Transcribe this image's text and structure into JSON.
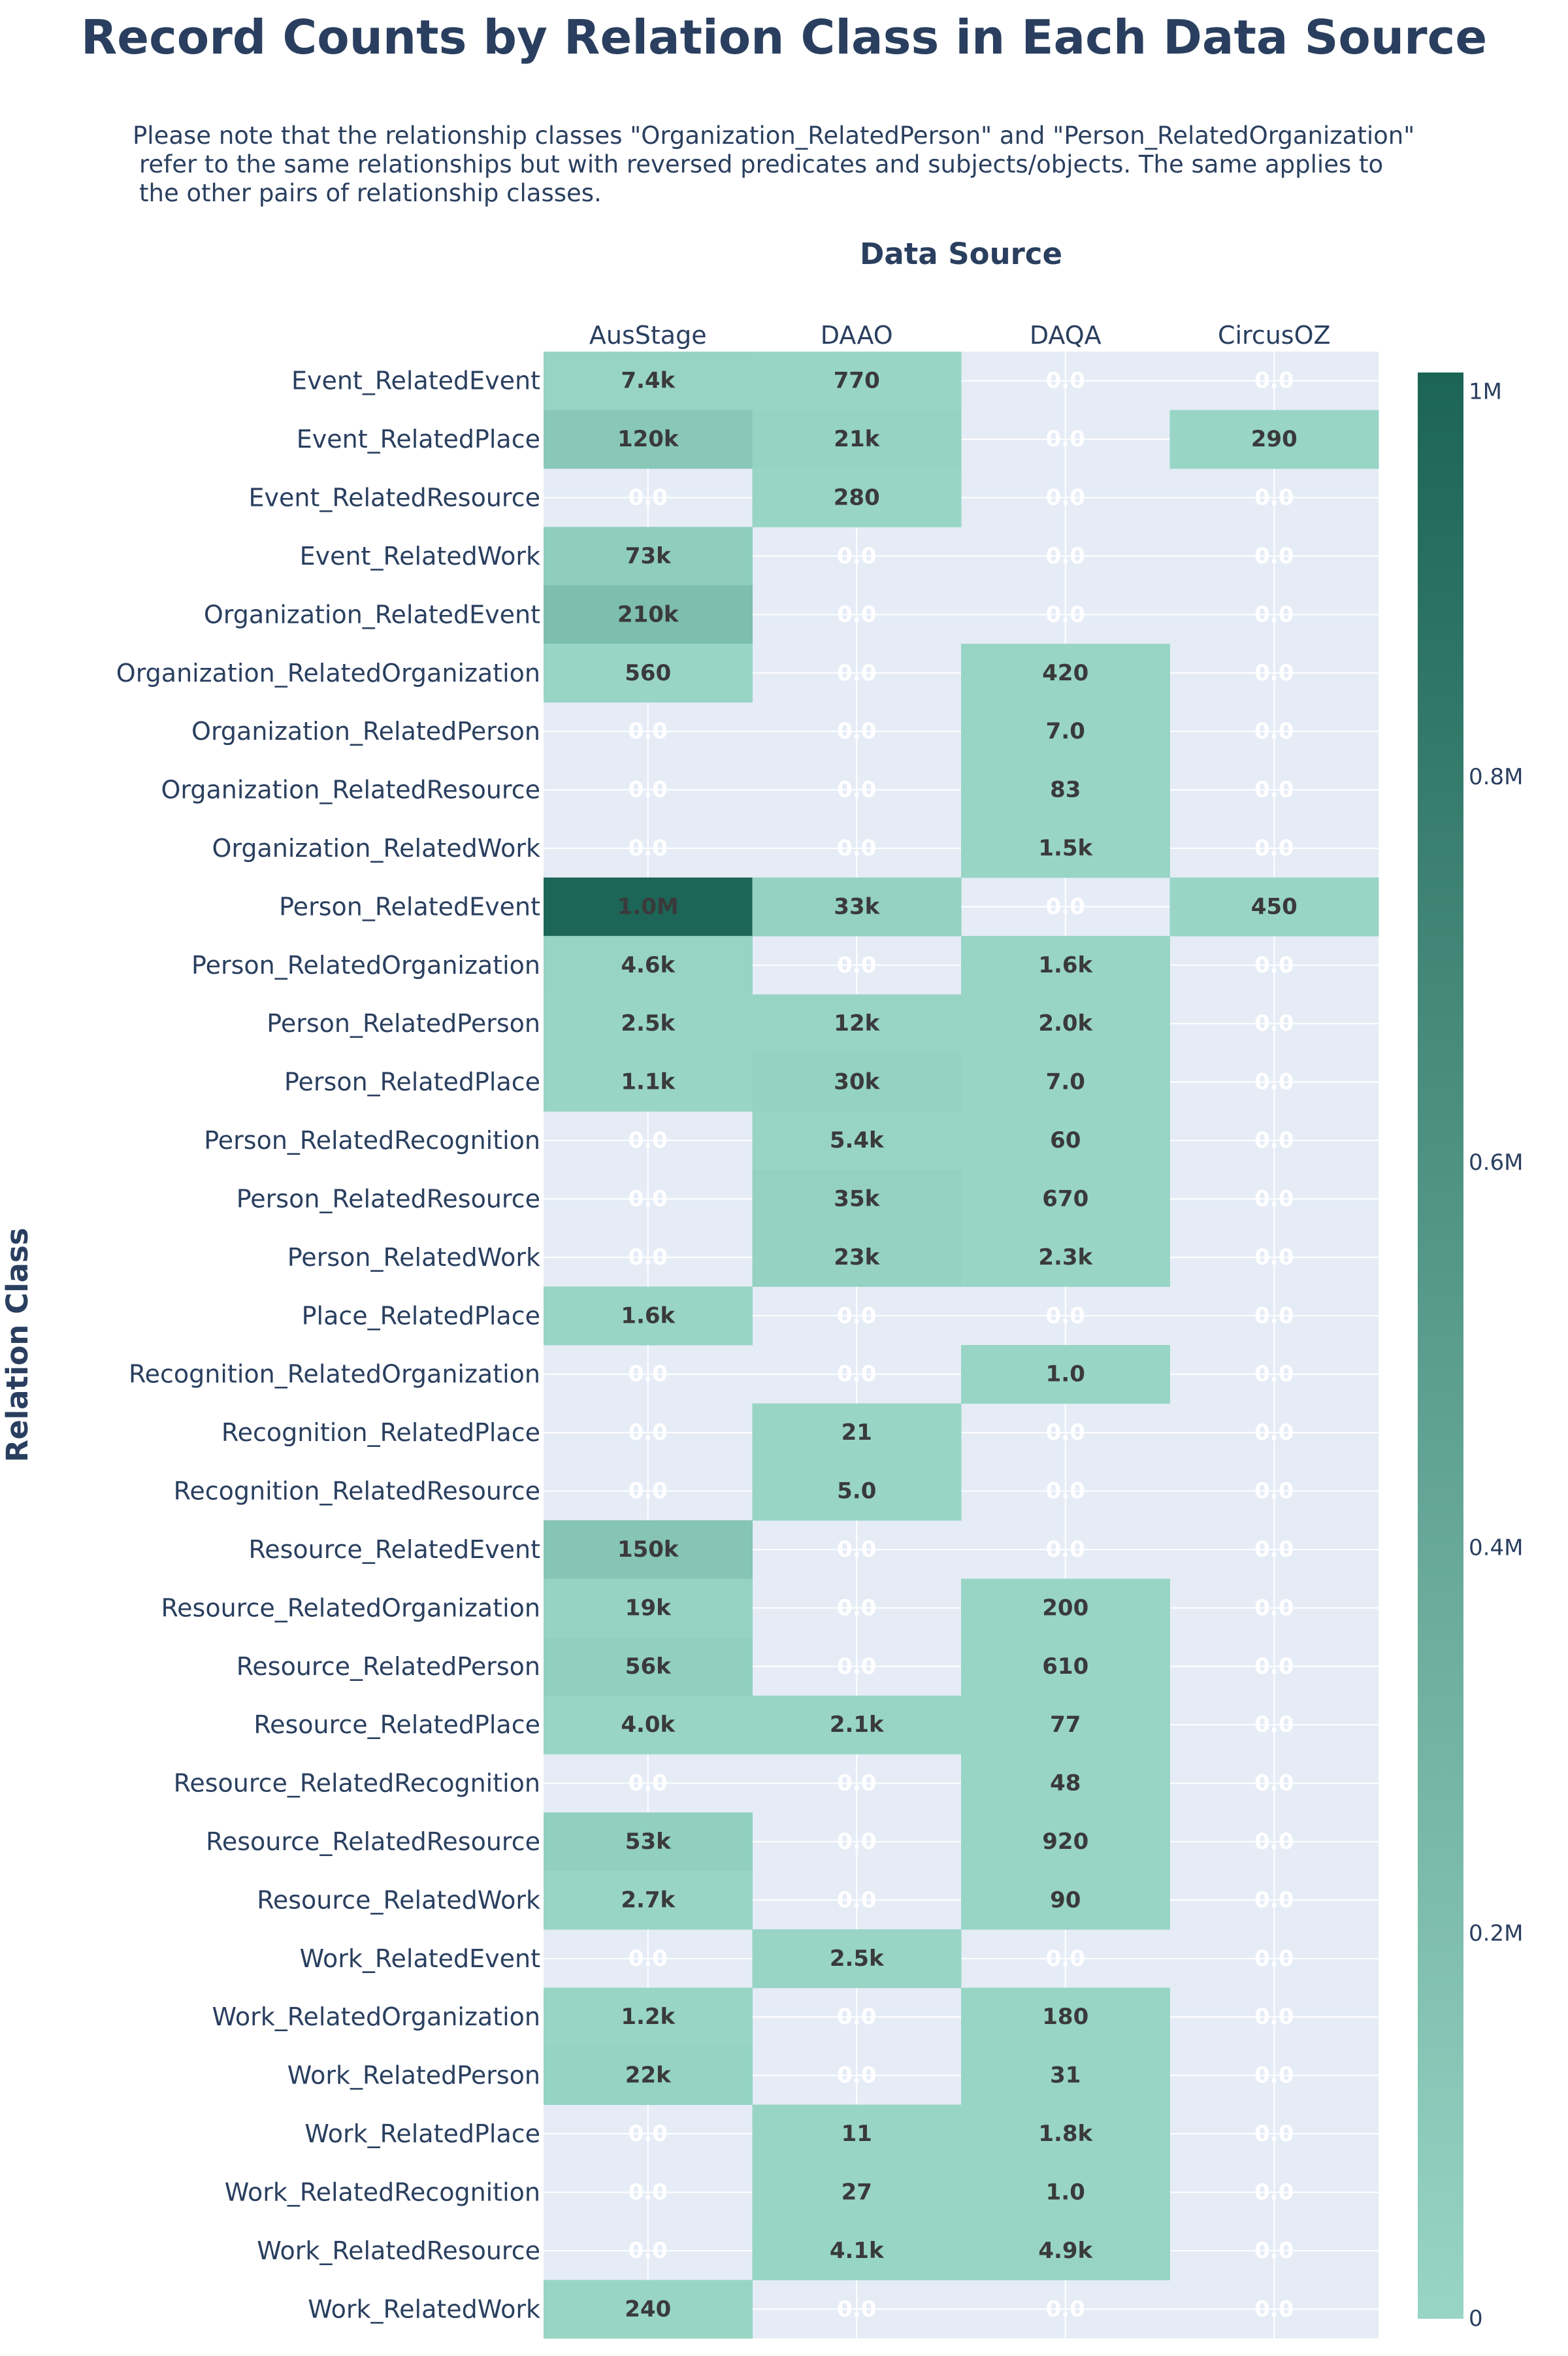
{
  "chart_data": {
    "type": "heatmap",
    "title": "Record Counts by Relation Class in Each Data Source",
    "subtitle_lines": [
      "Please note that the relationship classes \"Organization_RelatedPerson\" and \"Person_RelatedOrganization\"",
      "refer to the same relationships but with reversed predicates and subjects/objects. The same applies to",
      "the other pairs of relationship classes."
    ],
    "xlabel": "Data Source",
    "ylabel": "Relation Class",
    "x": [
      "AusStage",
      "DAAO",
      "DAQA",
      "CircusOZ"
    ],
    "y": [
      "Event_RelatedEvent",
      "Event_RelatedPlace",
      "Event_RelatedResource",
      "Event_RelatedWork",
      "Organization_RelatedEvent",
      "Organization_RelatedOrganization",
      "Organization_RelatedPerson",
      "Organization_RelatedResource",
      "Organization_RelatedWork",
      "Person_RelatedEvent",
      "Person_RelatedOrganization",
      "Person_RelatedPerson",
      "Person_RelatedPlace",
      "Person_RelatedRecognition",
      "Person_RelatedResource",
      "Person_RelatedWork",
      "Place_RelatedPlace",
      "Recognition_RelatedOrganization",
      "Recognition_RelatedPlace",
      "Recognition_RelatedResource",
      "Resource_RelatedEvent",
      "Resource_RelatedOrganization",
      "Resource_RelatedPerson",
      "Resource_RelatedPlace",
      "Resource_RelatedRecognition",
      "Resource_RelatedResource",
      "Resource_RelatedWork",
      "Work_RelatedEvent",
      "Work_RelatedOrganization",
      "Work_RelatedPerson",
      "Work_RelatedPlace",
      "Work_RelatedRecognition",
      "Work_RelatedResource",
      "Work_RelatedWork"
    ],
    "z": [
      [
        7400,
        770,
        0,
        0
      ],
      [
        120000,
        21000,
        0,
        290
      ],
      [
        0,
        280,
        0,
        0
      ],
      [
        73000,
        0,
        0,
        0
      ],
      [
        210000,
        0,
        0,
        0
      ],
      [
        560,
        0,
        420,
        0
      ],
      [
        0,
        0,
        7,
        0
      ],
      [
        0,
        0,
        83,
        0
      ],
      [
        0,
        0,
        1500,
        0
      ],
      [
        1000000,
        33000,
        0,
        450
      ],
      [
        4600,
        0,
        1600,
        0
      ],
      [
        2500,
        12000,
        2000,
        0
      ],
      [
        1100,
        30000,
        7,
        0
      ],
      [
        0,
        5400,
        60,
        0
      ],
      [
        0,
        35000,
        670,
        0
      ],
      [
        0,
        23000,
        2300,
        0
      ],
      [
        1600,
        0,
        0,
        0
      ],
      [
        0,
        0,
        1,
        0
      ],
      [
        0,
        21,
        0,
        0
      ],
      [
        0,
        5,
        0,
        0
      ],
      [
        150000,
        0,
        0,
        0
      ],
      [
        19000,
        0,
        200,
        0
      ],
      [
        56000,
        0,
        610,
        0
      ],
      [
        4000,
        2100,
        77,
        0
      ],
      [
        0,
        0,
        48,
        0
      ],
      [
        53000,
        0,
        920,
        0
      ],
      [
        2700,
        0,
        90,
        0
      ],
      [
        0,
        2500,
        0,
        0
      ],
      [
        1200,
        0,
        180,
        0
      ],
      [
        22000,
        0,
        31,
        0
      ],
      [
        0,
        11,
        1800,
        0
      ],
      [
        0,
        27,
        1,
        0
      ],
      [
        0,
        4100,
        4900,
        0
      ],
      [
        240,
        0,
        0,
        0
      ]
    ],
    "cell_labels": [
      [
        "7.4k",
        "770",
        "0.0",
        "0.0"
      ],
      [
        "120k",
        "21k",
        "0.0",
        "290"
      ],
      [
        "0.0",
        "280",
        "0.0",
        "0.0"
      ],
      [
        "73k",
        "0.0",
        "0.0",
        "0.0"
      ],
      [
        "210k",
        "0.0",
        "0.0",
        "0.0"
      ],
      [
        "560",
        "0.0",
        "420",
        "0.0"
      ],
      [
        "0.0",
        "0.0",
        "7.0",
        "0.0"
      ],
      [
        "0.0",
        "0.0",
        "83",
        "0.0"
      ],
      [
        "0.0",
        "0.0",
        "1.5k",
        "0.0"
      ],
      [
        "1.0M",
        "33k",
        "0.0",
        "450"
      ],
      [
        "4.6k",
        "0.0",
        "1.6k",
        "0.0"
      ],
      [
        "2.5k",
        "12k",
        "2.0k",
        "0.0"
      ],
      [
        "1.1k",
        "30k",
        "7.0",
        "0.0"
      ],
      [
        "0.0",
        "5.4k",
        "60",
        "0.0"
      ],
      [
        "0.0",
        "35k",
        "670",
        "0.0"
      ],
      [
        "0.0",
        "23k",
        "2.3k",
        "0.0"
      ],
      [
        "1.6k",
        "0.0",
        "0.0",
        "0.0"
      ],
      [
        "0.0",
        "0.0",
        "1.0",
        "0.0"
      ],
      [
        "0.0",
        "21",
        "0.0",
        "0.0"
      ],
      [
        "0.0",
        "5.0",
        "0.0",
        "0.0"
      ],
      [
        "150k",
        "0.0",
        "0.0",
        "0.0"
      ],
      [
        "19k",
        "0.0",
        "200",
        "0.0"
      ],
      [
        "56k",
        "0.0",
        "610",
        "0.0"
      ],
      [
        "4.0k",
        "2.1k",
        "77",
        "0.0"
      ],
      [
        "0.0",
        "0.0",
        "48",
        "0.0"
      ],
      [
        "53k",
        "0.0",
        "920",
        "0.0"
      ],
      [
        "2.7k",
        "0.0",
        "90",
        "0.0"
      ],
      [
        "0.0",
        "2.5k",
        "0.0",
        "0.0"
      ],
      [
        "1.2k",
        "0.0",
        "180",
        "0.0"
      ],
      [
        "22k",
        "0.0",
        "31",
        "0.0"
      ],
      [
        "0.0",
        "11",
        "1.8k",
        "0.0"
      ],
      [
        "0.0",
        "27",
        "1.0",
        "0.0"
      ],
      [
        "0.0",
        "4.1k",
        "4.9k",
        "0.0"
      ],
      [
        "240",
        "0.0",
        "0.0",
        "0.0"
      ]
    ],
    "zero_shown_as_blank": true,
    "x_axis_position": "top",
    "grid": true,
    "colorscale": {
      "low": "#98d5c5",
      "high": "#1c6456"
    },
    "zmin": 0,
    "zmax": 1010000,
    "colorbar_ticks": [
      0,
      200000,
      400000,
      600000,
      800000,
      1000000
    ],
    "colorbar_tick_labels": [
      "0",
      "0.2M",
      "0.4M",
      "0.6M",
      "0.8M",
      "1M"
    ],
    "plot_bg": "#e5ecf6",
    "grid_color": "#ffffff"
  }
}
